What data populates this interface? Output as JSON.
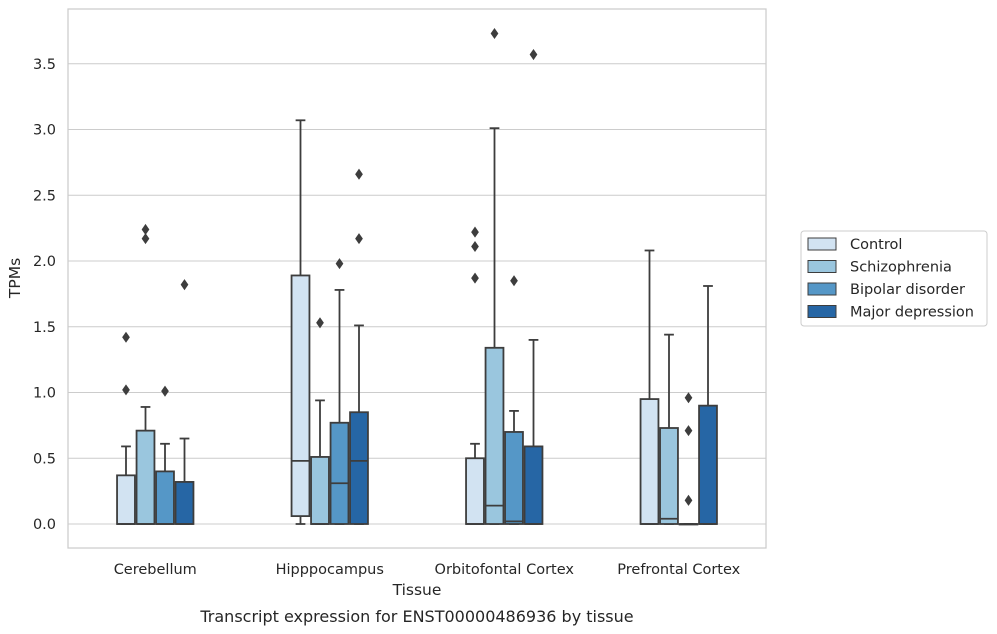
{
  "chart_data": {
    "type": "box",
    "title": "",
    "caption": "Transcript expression for ENST00000486936 by tissue",
    "xlabel": "Tissue",
    "ylabel": "TPMs",
    "ylim": [
      -0.18,
      3.9
    ],
    "yticks": [
      0.0,
      0.5,
      1.0,
      1.5,
      2.0,
      2.5,
      3.0,
      3.5
    ],
    "ytick_labels": [
      "0.0",
      "0.5",
      "1.0",
      "1.5",
      "2.0",
      "2.5",
      "3.0",
      "3.5"
    ],
    "grid": "horizontal",
    "legend_position": "right",
    "categories": [
      "Cerebellum",
      "Hipppocampus",
      "Orbitofontal Cortex",
      "Prefrontal Cortex"
    ],
    "series": [
      {
        "name": "Control",
        "color": "#d2e3f2",
        "boxes": [
          {
            "q1": 0.0,
            "median": 0.0,
            "q3": 0.37,
            "whisker_low": 0.0,
            "whisker_high": 0.59,
            "outliers": [
              1.02,
              1.42
            ]
          },
          {
            "q1": 0.06,
            "median": 0.48,
            "q3": 1.89,
            "whisker_low": 0.0,
            "whisker_high": 3.07,
            "outliers": []
          },
          {
            "q1": 0.0,
            "median": 0.0,
            "q3": 0.5,
            "whisker_low": 0.0,
            "whisker_high": 0.61,
            "outliers": [
              1.87,
              2.11,
              2.22
            ]
          },
          {
            "q1": 0.0,
            "median": 0.0,
            "q3": 0.95,
            "whisker_low": 0.0,
            "whisker_high": 2.08,
            "outliers": []
          }
        ]
      },
      {
        "name": "Schizophrenia",
        "color": "#9ac6de",
        "boxes": [
          {
            "q1": 0.0,
            "median": 0.0,
            "q3": 0.71,
            "whisker_low": 0.0,
            "whisker_high": 0.89,
            "outliers": [
              2.17,
              2.24
            ]
          },
          {
            "q1": 0.0,
            "median": 0.0,
            "q3": 0.51,
            "whisker_low": 0.0,
            "whisker_high": 0.94,
            "outliers": [
              1.53
            ]
          },
          {
            "q1": 0.0,
            "median": 0.14,
            "q3": 1.34,
            "whisker_low": 0.0,
            "whisker_high": 3.01,
            "outliers": [
              3.73
            ]
          },
          {
            "q1": 0.0,
            "median": 0.04,
            "q3": 0.73,
            "whisker_low": 0.0,
            "whisker_high": 1.44,
            "outliers": []
          }
        ]
      },
      {
        "name": "Bipolar disorder",
        "color": "#5597c7",
        "boxes": [
          {
            "q1": 0.0,
            "median": 0.0,
            "q3": 0.4,
            "whisker_low": 0.0,
            "whisker_high": 0.61,
            "outliers": [
              1.01
            ]
          },
          {
            "q1": 0.0,
            "median": 0.31,
            "q3": 0.77,
            "whisker_low": 0.0,
            "whisker_high": 1.78,
            "outliers": [
              1.98
            ]
          },
          {
            "q1": 0.0,
            "median": 0.02,
            "q3": 0.7,
            "whisker_low": 0.0,
            "whisker_high": 0.86,
            "outliers": [
              1.85
            ]
          },
          {
            "q1": 0.0,
            "median": 0.0,
            "q3": 0.0,
            "whisker_low": 0.0,
            "whisker_high": 0.0,
            "outliers": [
              0.18,
              0.71,
              0.96
            ]
          }
        ]
      },
      {
        "name": "Major depression",
        "color": "#2666a5",
        "boxes": [
          {
            "q1": 0.0,
            "median": 0.0,
            "q3": 0.32,
            "whisker_low": 0.0,
            "whisker_high": 0.65,
            "outliers": [
              1.82
            ]
          },
          {
            "q1": 0.0,
            "median": 0.48,
            "q3": 0.85,
            "whisker_low": 0.0,
            "whisker_high": 1.51,
            "outliers": [
              2.17,
              2.66
            ]
          },
          {
            "q1": 0.0,
            "median": 0.0,
            "q3": 0.59,
            "whisker_low": 0.0,
            "whisker_high": 1.4,
            "outliers": [
              3.57
            ]
          },
          {
            "q1": 0.0,
            "median": 0.0,
            "q3": 0.9,
            "whisker_low": 0.0,
            "whisker_high": 1.81,
            "outliers": []
          }
        ]
      }
    ]
  }
}
